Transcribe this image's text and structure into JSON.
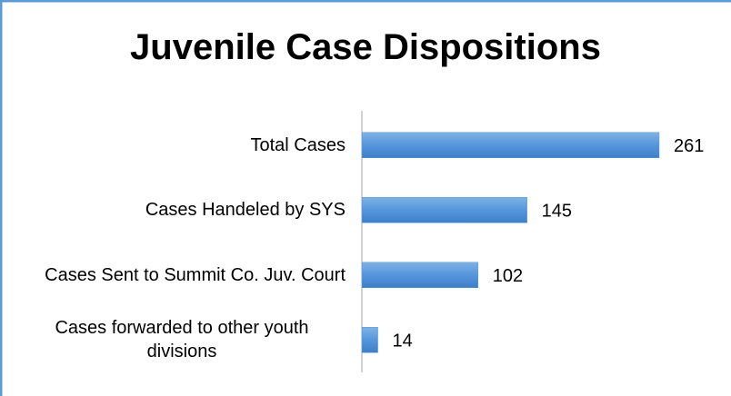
{
  "chart_data": {
    "type": "bar",
    "orientation": "horizontal",
    "title": "Juvenile Case Dispositions",
    "categories": [
      "Total Cases",
      "Cases Handeled by SYS",
      "Cases Sent to Summit Co. Juv. Court",
      "Cases forwarded to other youth divisions"
    ],
    "values": [
      261,
      145,
      102,
      14
    ],
    "color": "#5b9bd5"
  }
}
